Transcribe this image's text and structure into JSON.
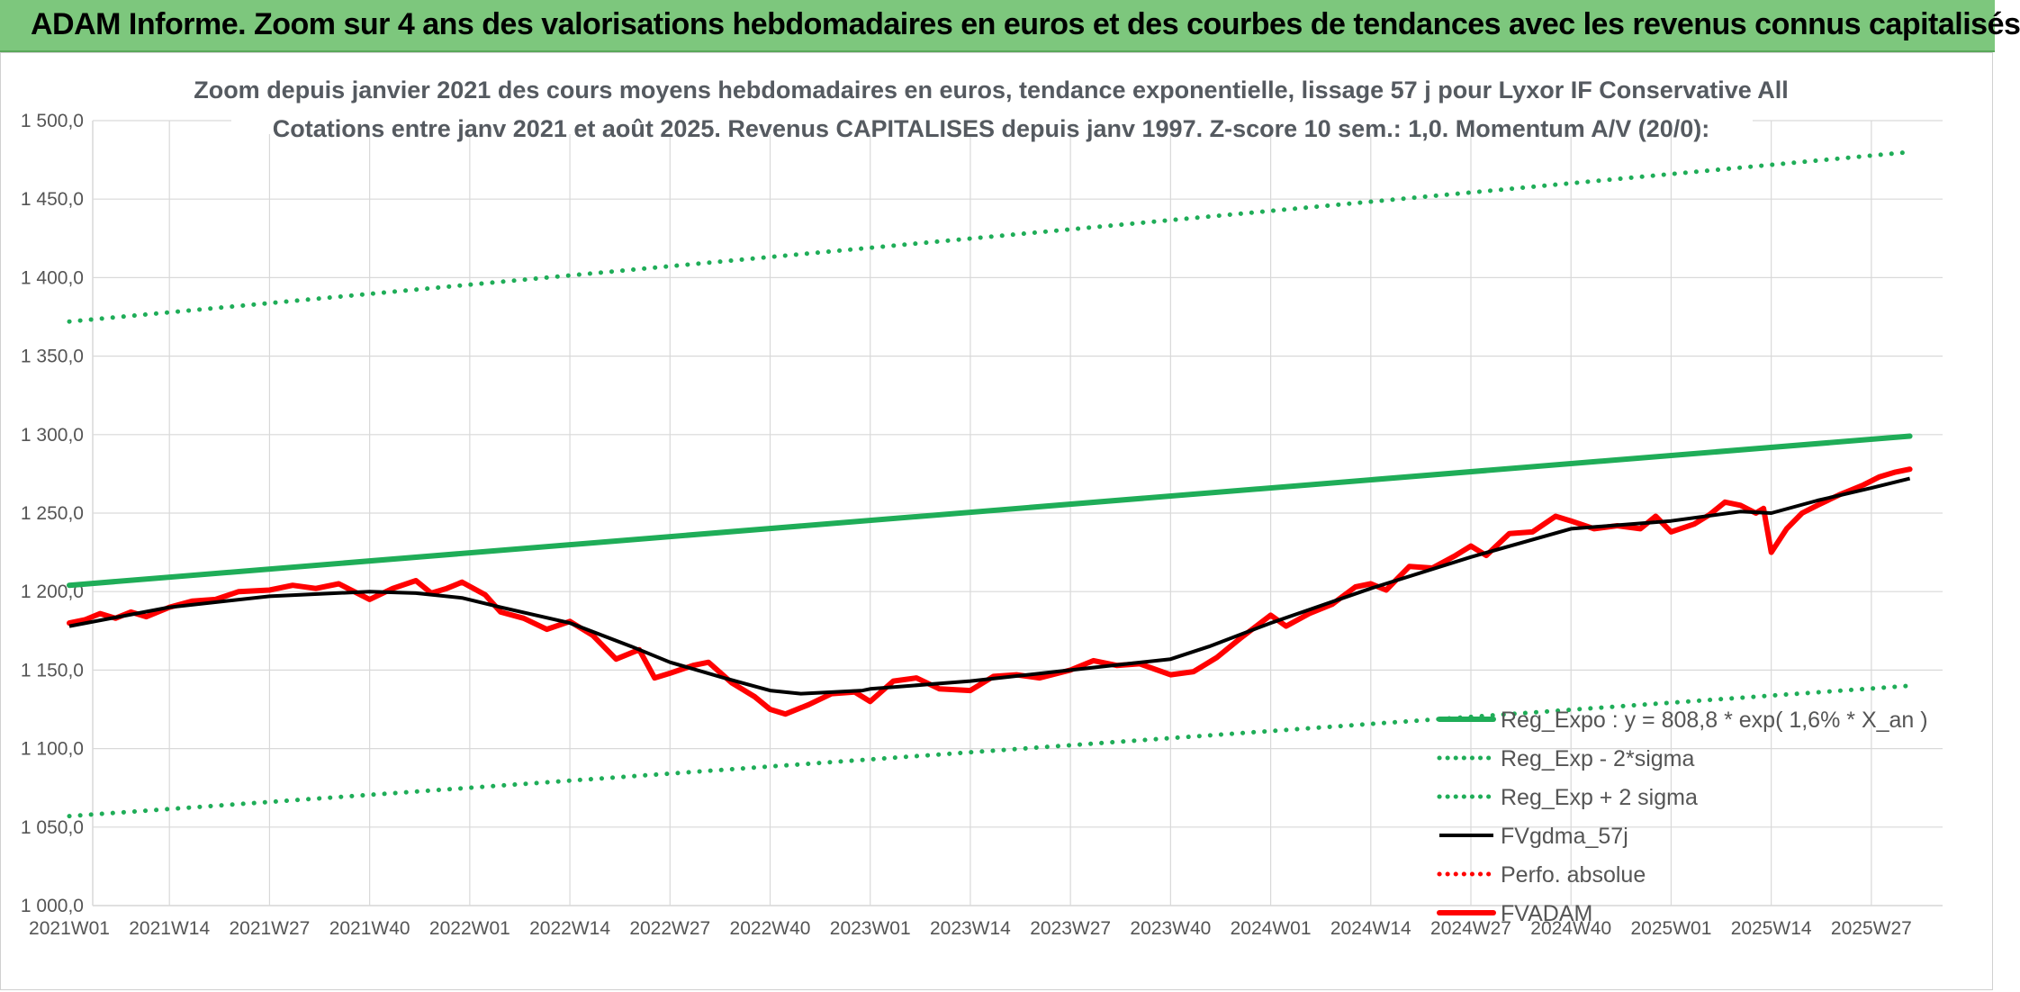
{
  "header": {
    "title": "ADAM Informe. Zoom sur 4 ans des valorisations hebdomadaires en euros et des courbes de tendances avec les revenus connus capitalisés"
  },
  "chart_data": {
    "type": "line",
    "title_lines": [
      "Zoom depuis janvier 2021 des cours moyens hebdomadaires en euros, tendance exponentielle, lissage 57 j pour Lyxor IF Conservative All",
      "Cotations entre janv 2021 et août 2025. Revenus CAPITALISES depuis janv 1997. Z-score 10 sem.: 1,0. Momentum A/V (20/0):"
    ],
    "y_range": [
      1000,
      1500
    ],
    "y_ticks": [
      1000,
      1050,
      1100,
      1150,
      1200,
      1250,
      1300,
      1350,
      1400,
      1450,
      1500
    ],
    "y_tick_labels": [
      "1 000,0",
      "1 050,0",
      "1 100,0",
      "1 150,0",
      "1 200,0",
      "1 250,0",
      "1 300,0",
      "1 350,0",
      "1 400,0",
      "1 450,0",
      "1 500,0"
    ],
    "x_tick_labels": [
      "2021W01",
      "2021W14",
      "2021W27",
      "2021W40",
      "2022W01",
      "2022W14",
      "2022W27",
      "2022W40",
      "2023W01",
      "2023W14",
      "2023W27",
      "2023W40",
      "2024W01",
      "2024W14",
      "2024W27",
      "2024W40",
      "2025W01",
      "2025W14",
      "2025W27"
    ],
    "x_tick_label_step_weeks": 13,
    "x_first_week": "2021W01",
    "x_last_week": "2025W32",
    "grid": true,
    "legend_position": "bottom-right",
    "series": [
      {
        "name": "Reg_Expo : y = 808,8 * exp( 1,6% *  X_an )",
        "style": "solid-thick",
        "color": "#1fad58",
        "points": [
          [
            "2021W01",
            1204
          ],
          [
            "2025W32",
            1299
          ]
        ]
      },
      {
        "name": "Reg_Exp - 2*sigma",
        "style": "dotted",
        "color": "#1fad58",
        "points": [
          [
            "2021W01",
            1057
          ],
          [
            "2025W32",
            1140
          ]
        ]
      },
      {
        "name": "Reg_Exp + 2 sigma",
        "style": "dotted",
        "color": "#1fad58",
        "points": [
          [
            "2021W01",
            1372
          ],
          [
            "2025W32",
            1480
          ]
        ]
      },
      {
        "name": "FVgdma_57j",
        "style": "solid",
        "color": "#000000",
        "points": [
          [
            "2021W01",
            1178
          ],
          [
            "2021W14",
            1190
          ],
          [
            "2021W27",
            1197
          ],
          [
            "2021W40",
            1200
          ],
          [
            "2021W46",
            1199
          ],
          [
            "2021W52",
            1196
          ],
          [
            "2022W05",
            1190
          ],
          [
            "2022W14",
            1180
          ],
          [
            "2022W22",
            1165
          ],
          [
            "2022W27",
            1155
          ],
          [
            "2022W34",
            1145
          ],
          [
            "2022W40",
            1137
          ],
          [
            "2022W44",
            1135
          ],
          [
            "2022W52",
            1137
          ],
          [
            "2023W01",
            1138
          ],
          [
            "2023W14",
            1143
          ],
          [
            "2023W27",
            1150
          ],
          [
            "2023W40",
            1157
          ],
          [
            "2023W45",
            1165
          ],
          [
            "2024W01",
            1180
          ],
          [
            "2024W14",
            1202
          ],
          [
            "2024W27",
            1222
          ],
          [
            "2024W40",
            1240
          ],
          [
            "2025W01",
            1245
          ],
          [
            "2025W10",
            1251
          ],
          [
            "2025W14",
            1250
          ],
          [
            "2025W20",
            1258
          ],
          [
            "2025W27",
            1266
          ],
          [
            "2025W32",
            1272
          ]
        ]
      },
      {
        "name": "Perfo. absolue",
        "style": "dotted",
        "color": "#ff0000",
        "points": []
      },
      {
        "name": "FVADAM",
        "style": "solid-thick",
        "color": "#ff0000",
        "points": [
          [
            "2021W01",
            1180
          ],
          [
            "2021W03",
            1182
          ],
          [
            "2021W05",
            1186
          ],
          [
            "2021W07",
            1183
          ],
          [
            "2021W09",
            1187
          ],
          [
            "2021W11",
            1184
          ],
          [
            "2021W14",
            1190
          ],
          [
            "2021W17",
            1194
          ],
          [
            "2021W20",
            1195
          ],
          [
            "2021W23",
            1200
          ],
          [
            "2021W27",
            1201
          ],
          [
            "2021W30",
            1204
          ],
          [
            "2021W33",
            1202
          ],
          [
            "2021W36",
            1205
          ],
          [
            "2021W40",
            1195
          ],
          [
            "2021W43",
            1202
          ],
          [
            "2021W46",
            1207
          ],
          [
            "2021W48",
            1199
          ],
          [
            "2021W50",
            1202
          ],
          [
            "2021W52",
            1206
          ],
          [
            "2022W03",
            1198
          ],
          [
            "2022W05",
            1187
          ],
          [
            "2022W08",
            1183
          ],
          [
            "2022W11",
            1176
          ],
          [
            "2022W14",
            1181
          ],
          [
            "2022W17",
            1172
          ],
          [
            "2022W20",
            1157
          ],
          [
            "2022W23",
            1163
          ],
          [
            "2022W25",
            1145
          ],
          [
            "2022W27",
            1148
          ],
          [
            "2022W30",
            1153
          ],
          [
            "2022W32",
            1155
          ],
          [
            "2022W35",
            1142
          ],
          [
            "2022W38",
            1133
          ],
          [
            "2022W40",
            1125
          ],
          [
            "2022W42",
            1122
          ],
          [
            "2022W45",
            1128
          ],
          [
            "2022W48",
            1135
          ],
          [
            "2022W51",
            1136
          ],
          [
            "2023W01",
            1130
          ],
          [
            "2023W04",
            1143
          ],
          [
            "2023W07",
            1145
          ],
          [
            "2023W10",
            1138
          ],
          [
            "2023W14",
            1137
          ],
          [
            "2023W17",
            1146
          ],
          [
            "2023W20",
            1147
          ],
          [
            "2023W23",
            1145
          ],
          [
            "2023W27",
            1150
          ],
          [
            "2023W30",
            1156
          ],
          [
            "2023W33",
            1153
          ],
          [
            "2023W36",
            1154
          ],
          [
            "2023W40",
            1147
          ],
          [
            "2023W43",
            1149
          ],
          [
            "2023W46",
            1158
          ],
          [
            "2023W49",
            1170
          ],
          [
            "2024W01",
            1185
          ],
          [
            "2024W03",
            1178
          ],
          [
            "2024W06",
            1186
          ],
          [
            "2024W09",
            1192
          ],
          [
            "2024W12",
            1203
          ],
          [
            "2024W14",
            1205
          ],
          [
            "2024W16",
            1201
          ],
          [
            "2024W19",
            1216
          ],
          [
            "2024W22",
            1215
          ],
          [
            "2024W25",
            1223
          ],
          [
            "2024W27",
            1229
          ],
          [
            "2024W29",
            1223
          ],
          [
            "2024W32",
            1237
          ],
          [
            "2024W35",
            1238
          ],
          [
            "2024W38",
            1248
          ],
          [
            "2024W40",
            1245
          ],
          [
            "2024W43",
            1240
          ],
          [
            "2024W46",
            1242
          ],
          [
            "2024W49",
            1240
          ],
          [
            "2024W51",
            1248
          ],
          [
            "2025W01",
            1238
          ],
          [
            "2025W04",
            1243
          ],
          [
            "2025W06",
            1249
          ],
          [
            "2025W08",
            1257
          ],
          [
            "2025W10",
            1255
          ],
          [
            "2025W12",
            1250
          ],
          [
            "2025W13",
            1253
          ],
          [
            "2025W14",
            1225
          ],
          [
            "2025W16",
            1240
          ],
          [
            "2025W18",
            1250
          ],
          [
            "2025W20",
            1255
          ],
          [
            "2025W23",
            1262
          ],
          [
            "2025W26",
            1268
          ],
          [
            "2025W28",
            1273
          ],
          [
            "2025W30",
            1276
          ],
          [
            "2025W32",
            1278
          ]
        ]
      }
    ]
  }
}
